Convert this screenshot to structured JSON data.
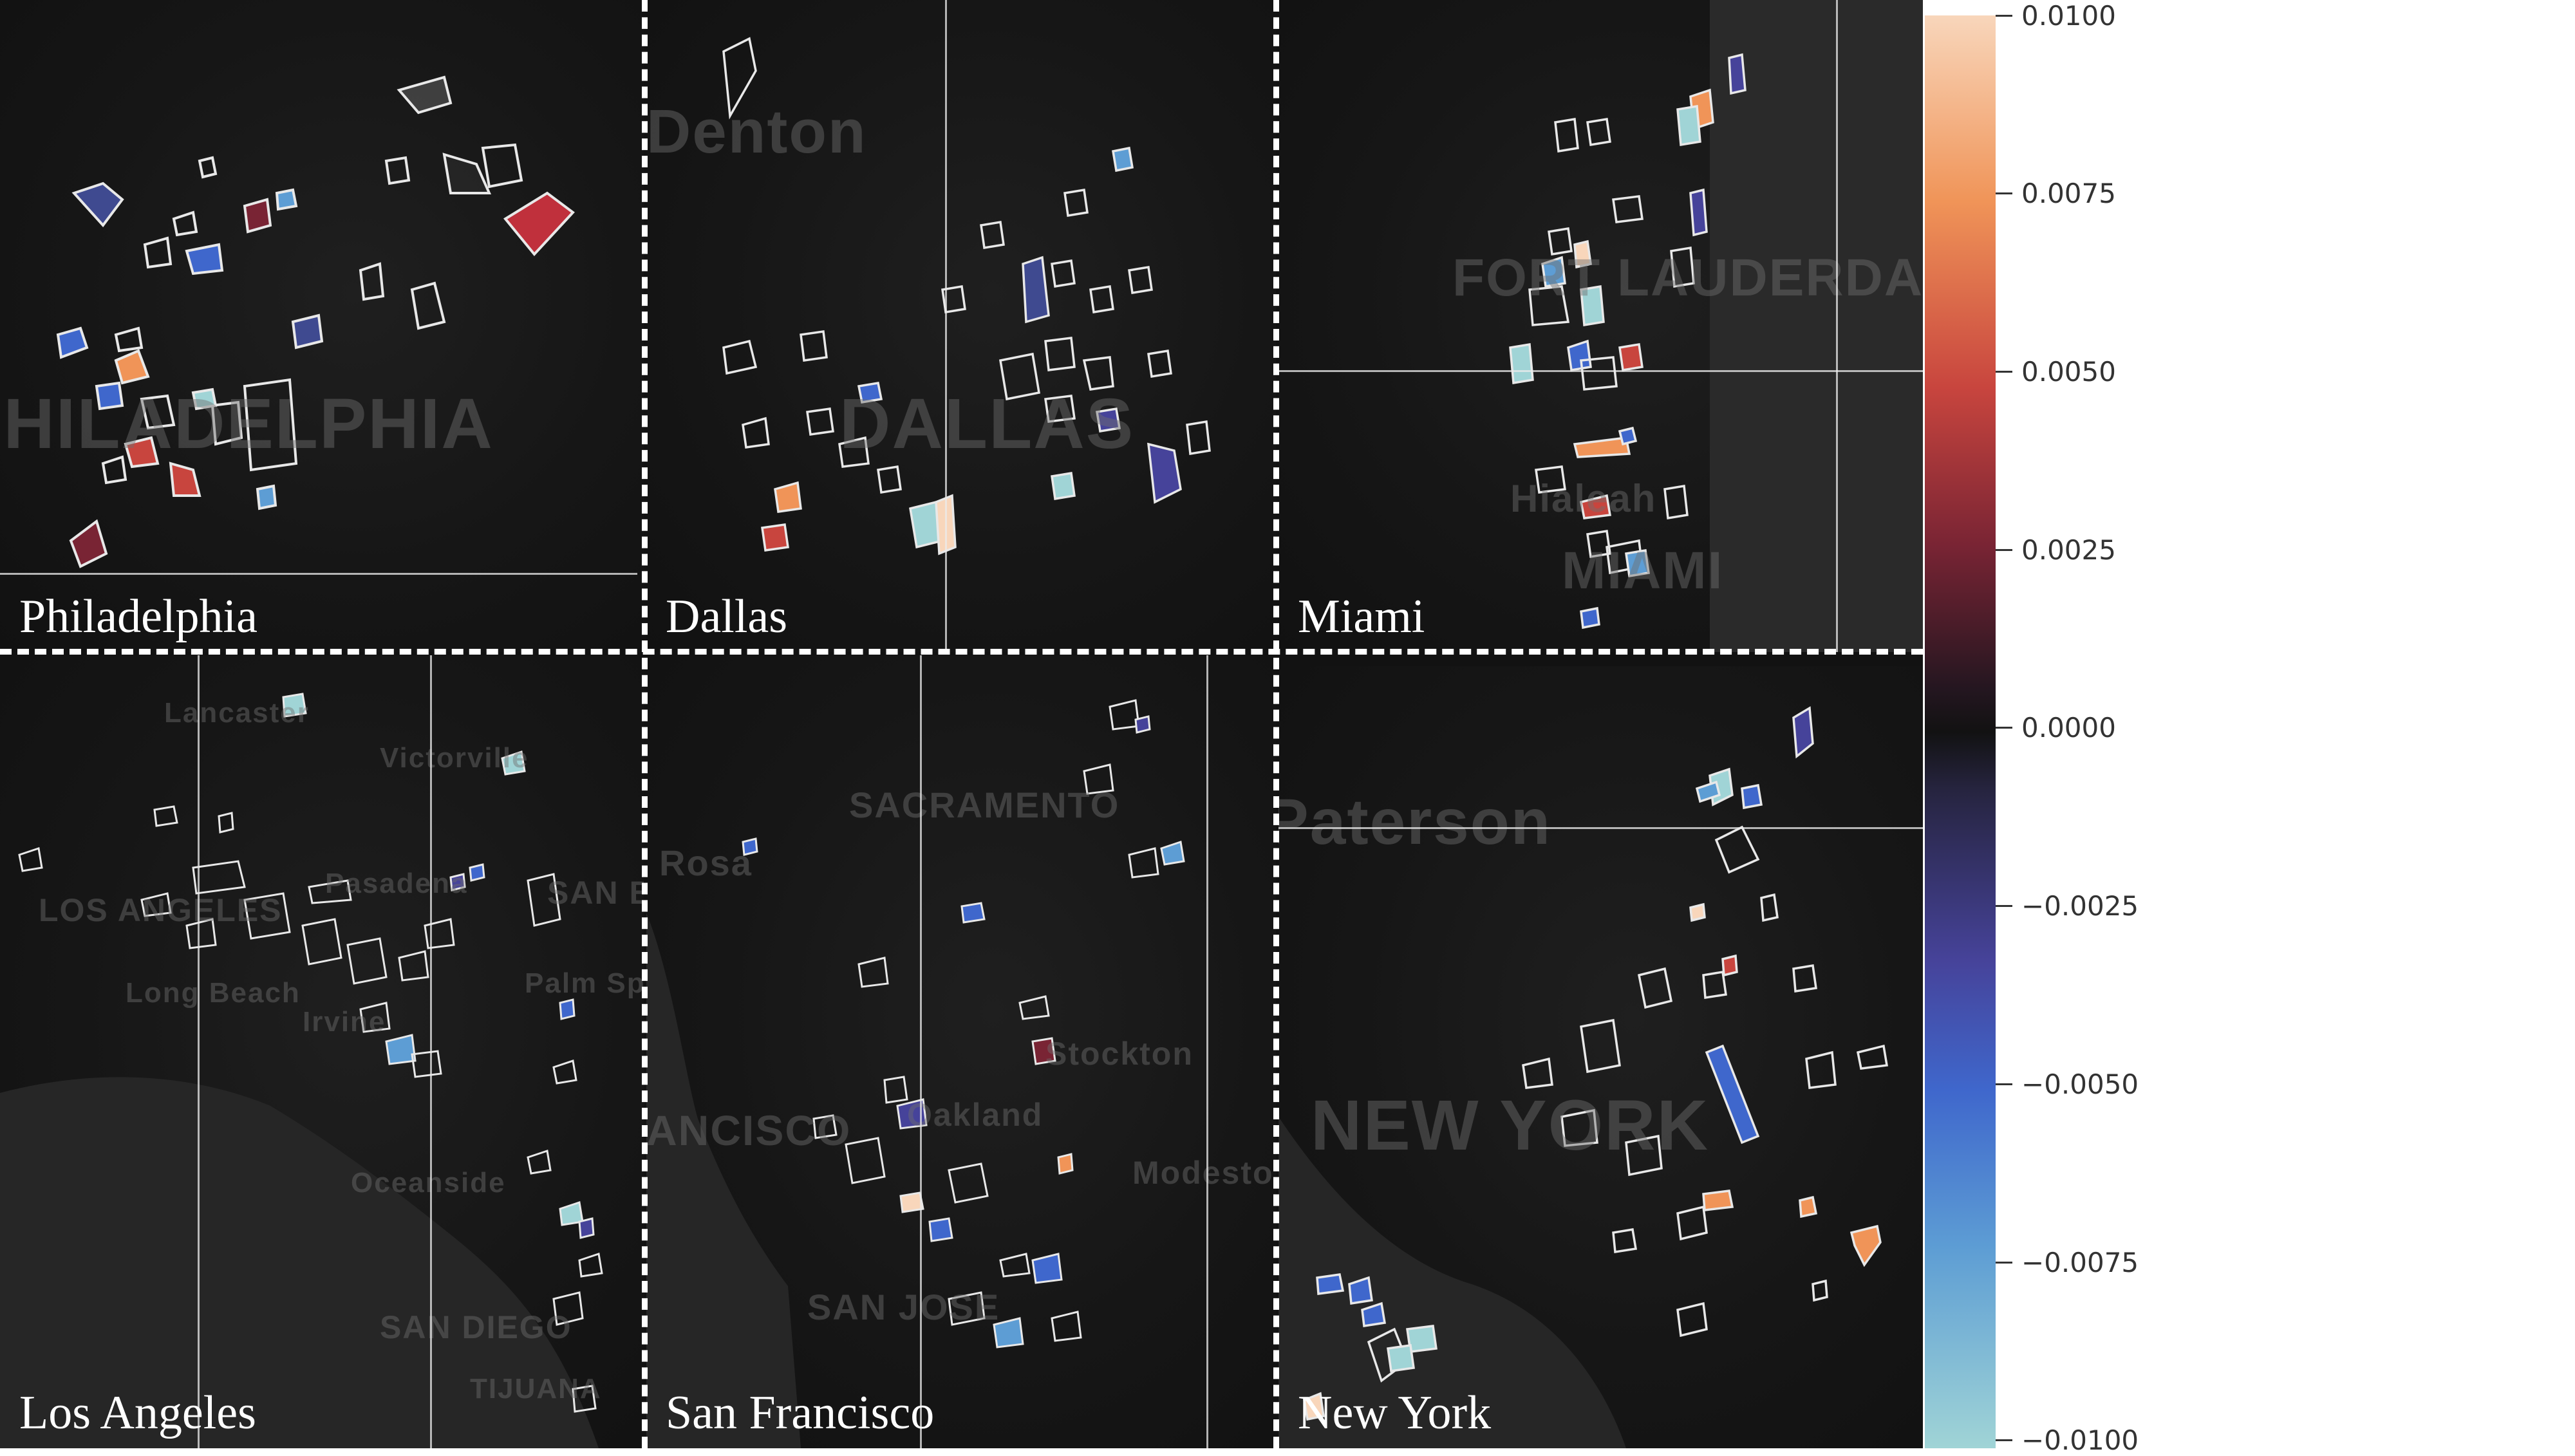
{
  "panels": [
    {
      "city": "Philadelphia",
      "place_labels": [
        "PHILADELPHIA"
      ],
      "colors": {
        "outline": "#e8e8e8"
      }
    },
    {
      "city": "Dallas",
      "place_labels": [
        "Denton",
        "DALLAS"
      ]
    },
    {
      "city": "Miami",
      "place_labels": [
        "FORT LAUDERDALE",
        "Hialeah",
        "MIAMI"
      ]
    },
    {
      "city": "Los Angeles",
      "place_labels": [
        "Lancaster",
        "Victorville",
        "LOS ANGELES",
        "Pasadena",
        "SAN B",
        "Long Beach",
        "Irvine",
        "Palm Sp",
        "Oceanside",
        "SAN DIEGO",
        "TIJUANA"
      ]
    },
    {
      "city": "San Francisco",
      "place_labels": [
        "SACRAMENTO",
        "Rosa",
        "Stockton",
        "ANCISCO",
        "Oakland",
        "Modesto",
        "SAN JOSE"
      ]
    },
    {
      "city": "New York",
      "place_labels": [
        "Paterson",
        "NEW YORK"
      ]
    }
  ],
  "colorbar": {
    "ticks": [
      "0.0100",
      "0.0075",
      "0.0050",
      "0.0025",
      "0.0000",
      "−0.0025",
      "−0.0050",
      "−0.0075",
      "−0.0100"
    ],
    "range": [
      -0.01,
      0.01
    ],
    "colors": {
      "max": "#f8d6bb",
      "high": "#f09458",
      "mid_high": "#c8453e",
      "low_pos": "#792434",
      "zero": "#121212",
      "low_neg": "#46439a",
      "mid_low": "#3f67cc",
      "low": "#5d9dd4",
      "min": "#a0d4d6"
    }
  }
}
